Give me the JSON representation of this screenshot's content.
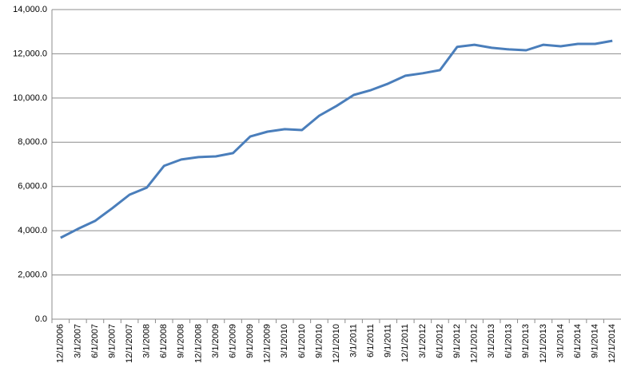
{
  "chart_data": {
    "type": "line",
    "categories": [
      "12/1/2006",
      "3/1/2007",
      "6/1/2007",
      "9/1/2007",
      "12/1/2007",
      "3/1/2008",
      "6/1/2008",
      "9/1/2008",
      "12/1/2008",
      "3/1/2009",
      "6/1/2009",
      "9/1/2009",
      "12/1/2009",
      "3/1/2010",
      "6/1/2010",
      "9/1/2010",
      "12/1/2010",
      "3/1/2011",
      "6/1/2011",
      "9/1/2011",
      "12/1/2011",
      "3/1/2012",
      "6/1/2012",
      "9/1/2012",
      "12/1/2012",
      "3/1/2013",
      "6/1/2013",
      "9/1/2013",
      "12/1/2013",
      "3/1/2014",
      "6/1/2014",
      "9/1/2014",
      "12/1/2014"
    ],
    "series": [
      {
        "color": "#4a7ebb",
        "values": [
          3680,
          4080,
          4440,
          5020,
          5630,
          5950,
          6930,
          7220,
          7330,
          7360,
          7510,
          8260,
          8480,
          8590,
          8550,
          9200,
          9640,
          10140,
          10360,
          10650,
          11010,
          11120,
          11260,
          12310,
          12410,
          12270,
          12200,
          12160,
          12410,
          12340,
          12450,
          12450,
          12590
        ]
      }
    ],
    "ylim": [
      0,
      14000
    ],
    "yticks": [
      {
        "value": 0,
        "label": "0.0"
      },
      {
        "value": 2000,
        "label": "2,000.0"
      },
      {
        "value": 4000,
        "label": "4,000.0"
      },
      {
        "value": 6000,
        "label": "6,000.0"
      },
      {
        "value": 8000,
        "label": "8,000.0"
      },
      {
        "value": 10000,
        "label": "10,000.0"
      },
      {
        "value": 12000,
        "label": "12,000.0"
      },
      {
        "value": 14000,
        "label": "14,000.0"
      }
    ],
    "grid": true
  }
}
